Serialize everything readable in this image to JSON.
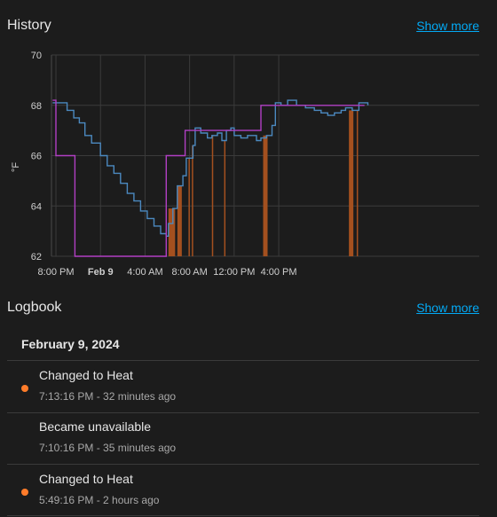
{
  "history": {
    "title": "History",
    "show_more": "Show more"
  },
  "logbook": {
    "title": "Logbook",
    "show_more": "Show more",
    "date": "February 9, 2024",
    "entries": [
      {
        "title": "Changed to Heat",
        "time": "7:13:16 PM",
        "ago": "32 minutes ago",
        "dot": true
      },
      {
        "title": "Became unavailable",
        "time": "7:10:16 PM",
        "ago": "35 minutes ago",
        "dot": false
      },
      {
        "title": "Changed to Heat",
        "time": "5:49:16 PM",
        "ago": "2 hours ago",
        "dot": true
      }
    ]
  },
  "colors": {
    "current_temp": "#4b89c0",
    "target_temp": "#b13fc4",
    "heating": "#a4501f",
    "dot": "#ff7c2a",
    "link": "#03a9f4"
  },
  "chart_data": {
    "type": "line",
    "ylabel": "°F",
    "ylim": [
      62,
      70
    ],
    "yticks": [
      62,
      64,
      66,
      68,
      70
    ],
    "x_unit": "hours since 8:00 PM",
    "xlim": [
      -0.2,
      19.0
    ],
    "xticks": [
      {
        "x": 0,
        "label": "8:00 PM",
        "bold": false
      },
      {
        "x": 2,
        "label": "Feb 9",
        "bold": true
      },
      {
        "x": 4,
        "label": "4:00 AM",
        "bold": false
      },
      {
        "x": 6,
        "label": "8:00 AM",
        "bold": false
      },
      {
        "x": 8,
        "label": "12:00 PM",
        "bold": false
      },
      {
        "x": 10,
        "label": "4:00 PM",
        "bold": false
      }
    ],
    "series": [
      {
        "name": "current_temperature",
        "points": [
          [
            -0.15,
            68.1
          ],
          [
            0.3,
            68.1
          ],
          [
            0.5,
            67.8
          ],
          [
            0.8,
            67.5
          ],
          [
            1.05,
            67.3
          ],
          [
            1.3,
            66.8
          ],
          [
            1.6,
            66.5
          ],
          [
            2.0,
            66.0
          ],
          [
            2.3,
            65.6
          ],
          [
            2.6,
            65.3
          ],
          [
            2.9,
            64.9
          ],
          [
            3.2,
            64.5
          ],
          [
            3.5,
            64.2
          ],
          [
            3.8,
            63.8
          ],
          [
            4.1,
            63.5
          ],
          [
            4.4,
            63.2
          ],
          [
            4.7,
            62.9
          ],
          [
            4.95,
            62.8
          ],
          [
            5.05,
            63.3
          ],
          [
            5.25,
            63.9
          ],
          [
            5.45,
            64.8
          ],
          [
            5.7,
            65.2
          ],
          [
            5.85,
            65.9
          ],
          [
            6.15,
            66.4
          ],
          [
            6.25,
            67.1
          ],
          [
            6.5,
            66.9
          ],
          [
            6.8,
            66.7
          ],
          [
            7.0,
            66.8
          ],
          [
            7.25,
            66.9
          ],
          [
            7.45,
            66.6
          ],
          [
            7.65,
            67.0
          ],
          [
            7.85,
            67.1
          ],
          [
            8.0,
            66.8
          ],
          [
            8.3,
            66.7
          ],
          [
            8.6,
            66.8
          ],
          [
            9.0,
            66.6
          ],
          [
            9.2,
            66.7
          ],
          [
            9.45,
            66.8
          ],
          [
            9.7,
            67.2
          ],
          [
            9.85,
            68.1
          ],
          [
            10.1,
            68.0
          ],
          [
            10.4,
            68.2
          ],
          [
            10.8,
            68.0
          ],
          [
            11.2,
            67.9
          ],
          [
            11.6,
            67.8
          ],
          [
            11.9,
            67.7
          ],
          [
            12.2,
            67.6
          ],
          [
            12.5,
            67.7
          ],
          [
            12.8,
            67.8
          ],
          [
            13.0,
            67.9
          ],
          [
            13.3,
            67.8
          ],
          [
            13.6,
            68.1
          ],
          [
            14.0,
            68.0
          ]
        ]
      },
      {
        "name": "target_temperature",
        "points": [
          [
            -0.15,
            68.2
          ],
          [
            0.0,
            68.2
          ],
          [
            0.0,
            66.0
          ],
          [
            0.85,
            66.0
          ],
          [
            0.85,
            62.0
          ],
          [
            4.95,
            62.0
          ],
          [
            4.95,
            66.0
          ],
          [
            5.8,
            66.0
          ],
          [
            5.8,
            67.0
          ],
          [
            9.2,
            67.0
          ],
          [
            9.2,
            68.0
          ],
          [
            13.85,
            68.0
          ]
        ]
      },
      {
        "name": "heating",
        "intervals": [
          [
            5.05,
            5.35
          ],
          [
            5.45,
            5.65
          ],
          [
            5.95,
            6.0
          ],
          [
            6.1,
            6.15
          ],
          [
            7.0,
            7.05
          ],
          [
            7.55,
            7.57
          ],
          [
            9.3,
            9.5
          ],
          [
            13.15,
            13.35
          ],
          [
            13.5,
            13.55
          ]
        ]
      }
    ]
  }
}
